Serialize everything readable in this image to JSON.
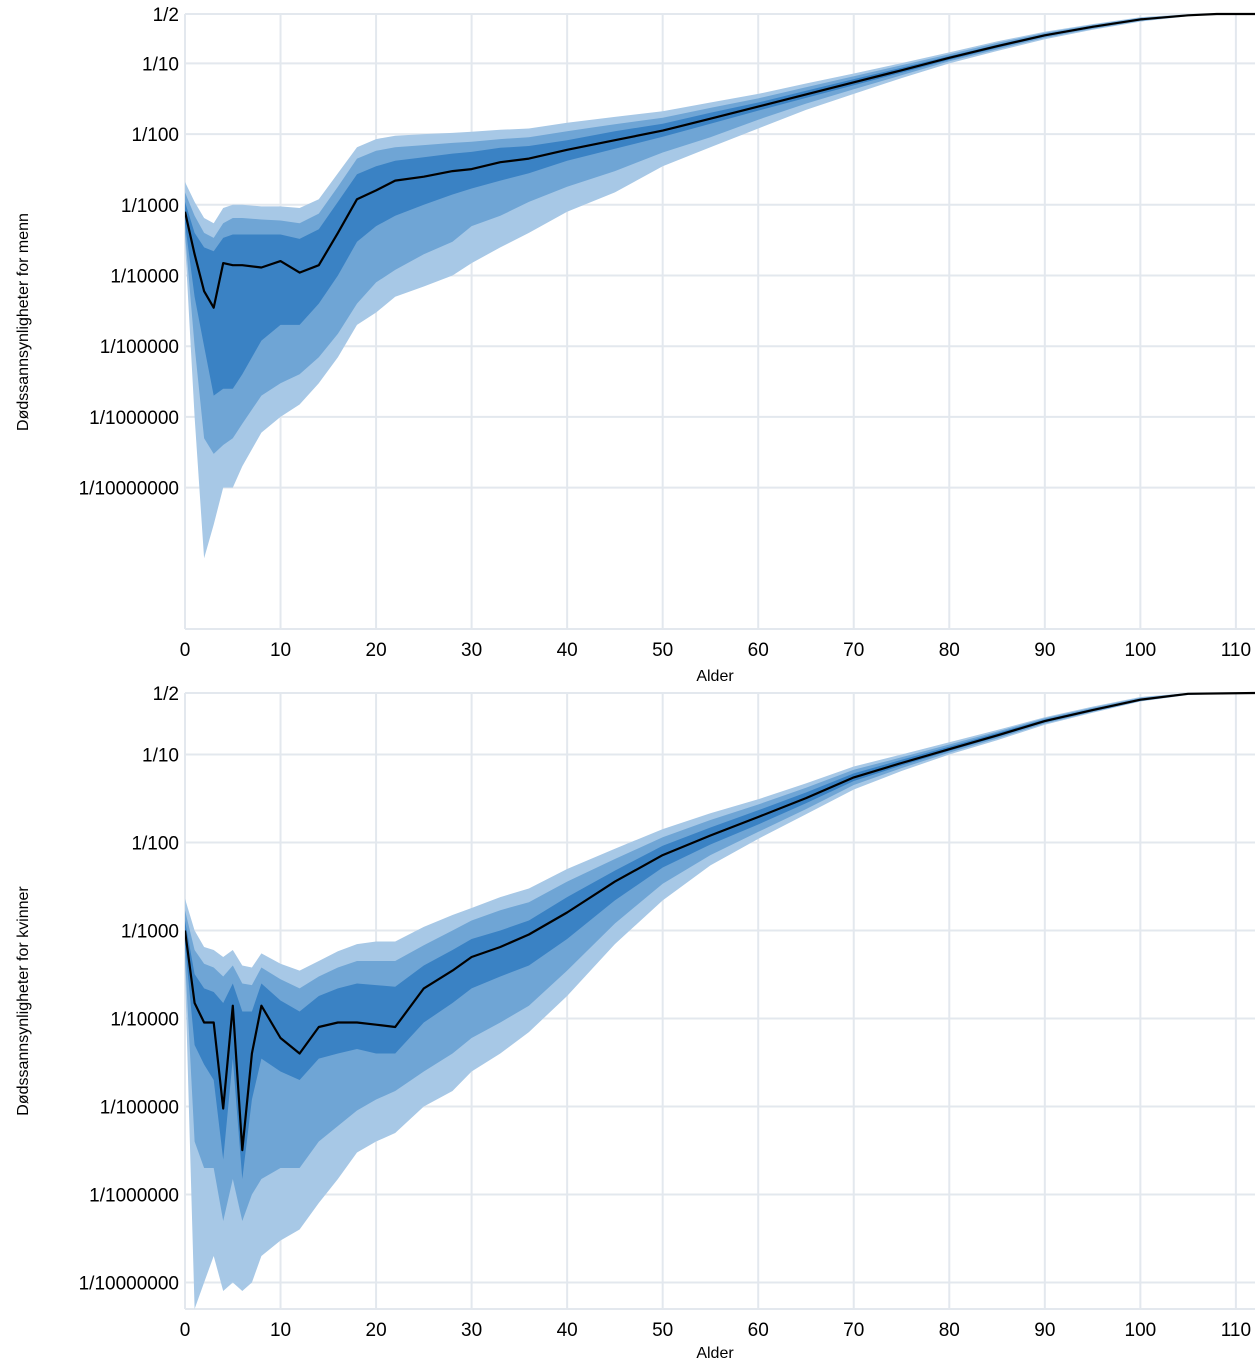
{
  "chart_data": [
    {
      "type": "area",
      "xlabel": "Alder",
      "ylabel": "Dødssannsynligheter for menn",
      "y_scale": "log",
      "xlim": [
        0,
        112
      ],
      "ylim": [
        1e-09,
        0.5
      ],
      "grid": true,
      "x_ticks": [
        0,
        10,
        20,
        30,
        40,
        50,
        60,
        70,
        80,
        90,
        100,
        110
      ],
      "y_ticks": [
        {
          "value": 0.5,
          "label": "1/2"
        },
        {
          "value": 0.1,
          "label": "1/10"
        },
        {
          "value": 0.01,
          "label": "1/100"
        },
        {
          "value": 0.001,
          "label": "1/1000"
        },
        {
          "value": 0.0001,
          "label": "1/10000"
        },
        {
          "value": 1e-05,
          "label": "1/100000"
        },
        {
          "value": 1e-06,
          "label": "1/1000000"
        },
        {
          "value": 1e-07,
          "label": "1/10000000"
        }
      ],
      "colors": {
        "outer": "#a7c8e6",
        "middle": "#6fa5d5",
        "inner": "#3a82c4",
        "line": "#000000",
        "grid": "#e3e8ee"
      },
      "x": [
        0,
        1,
        2,
        3,
        4,
        5,
        6,
        8,
        10,
        12,
        14,
        16,
        18,
        20,
        22,
        25,
        28,
        30,
        33,
        36,
        40,
        45,
        50,
        55,
        60,
        65,
        70,
        75,
        80,
        85,
        90,
        95,
        100,
        105,
        108,
        112
      ],
      "median": [
        0.0008,
        0.0002,
        6e-05,
        3.5e-05,
        0.00015,
        0.00014,
        0.00014,
        0.00013,
        0.00016,
        0.00011,
        0.00014,
        0.0004,
        0.0012,
        0.0016,
        0.0022,
        0.0025,
        0.003,
        0.0032,
        0.004,
        0.0045,
        0.006,
        0.0082,
        0.0112,
        0.0165,
        0.0245,
        0.0365,
        0.054,
        0.08,
        0.12,
        0.175,
        0.25,
        0.33,
        0.42,
        0.48,
        0.5,
        0.5
      ],
      "band_inner_lo": [
        0.00055,
        5e-05,
        1e-05,
        2e-06,
        2.5e-06,
        2.5e-06,
        4e-06,
        1.2e-05,
        2e-05,
        2e-05,
        4e-05,
        0.0001,
        0.0003,
        0.0005,
        0.0007,
        0.001,
        0.0014,
        0.0017,
        0.0022,
        0.0028,
        0.0042,
        0.0062,
        0.0092,
        0.014,
        0.0215,
        0.0325,
        0.049,
        0.074,
        0.113,
        0.166,
        0.24,
        0.32,
        0.41,
        0.475,
        0.5,
        0.5
      ],
      "band_inner_hi": [
        0.0011,
        0.0004,
        0.00025,
        0.00022,
        0.00034,
        0.00038,
        0.00038,
        0.00038,
        0.00038,
        0.00033,
        0.00045,
        0.0011,
        0.0027,
        0.0035,
        0.0042,
        0.0047,
        0.0053,
        0.0056,
        0.0064,
        0.0068,
        0.0082,
        0.011,
        0.014,
        0.02,
        0.028,
        0.041,
        0.06,
        0.087,
        0.127,
        0.184,
        0.26,
        0.34,
        0.43,
        0.485,
        0.5,
        0.5
      ],
      "band_middle_lo": [
        0.0004,
        1e-05,
        5e-07,
        3e-07,
        4e-07,
        5e-07,
        8e-07,
        2e-06,
        3e-06,
        4e-06,
        7e-06,
        1.5e-05,
        4e-05,
        8e-05,
        0.00012,
        0.0002,
        0.0003,
        0.0005,
        0.0007,
        0.0011,
        0.0018,
        0.003,
        0.0055,
        0.009,
        0.016,
        0.027,
        0.043,
        0.068,
        0.107,
        0.158,
        0.23,
        0.31,
        0.4,
        0.47,
        0.5,
        0.5
      ],
      "band_middle_hi": [
        0.0015,
        0.0007,
        0.0004,
        0.00034,
        0.00055,
        0.00065,
        0.00065,
        0.00062,
        0.0006,
        0.00055,
        0.00075,
        0.0018,
        0.0045,
        0.0058,
        0.0065,
        0.007,
        0.0075,
        0.0078,
        0.0085,
        0.009,
        0.011,
        0.0138,
        0.017,
        0.0235,
        0.032,
        0.046,
        0.066,
        0.094,
        0.135,
        0.195,
        0.27,
        0.35,
        0.44,
        0.49,
        0.5,
        0.5
      ],
      "band_outer_lo": [
        0.0003,
        1e-06,
        1e-08,
        3e-08,
        1e-07,
        1e-07,
        2e-07,
        6e-07,
        1e-06,
        1.5e-06,
        3e-06,
        7e-06,
        2e-05,
        3e-05,
        5e-05,
        7e-05,
        0.0001,
        0.00015,
        0.00025,
        0.0004,
        0.0008,
        0.0015,
        0.0035,
        0.0065,
        0.012,
        0.022,
        0.037,
        0.062,
        0.1,
        0.15,
        0.22,
        0.3,
        0.39,
        0.465,
        0.5,
        0.5
      ],
      "band_outer_hi": [
        0.0021,
        0.0011,
        0.00065,
        0.00055,
        0.0009,
        0.001,
        0.001,
        0.00095,
        0.00095,
        0.0009,
        0.0012,
        0.0028,
        0.0065,
        0.0085,
        0.0095,
        0.01,
        0.0104,
        0.0108,
        0.0115,
        0.012,
        0.0145,
        0.0175,
        0.021,
        0.028,
        0.037,
        0.052,
        0.072,
        0.101,
        0.143,
        0.205,
        0.28,
        0.36,
        0.45,
        0.495,
        0.5,
        0.5
      ]
    },
    {
      "type": "area",
      "xlabel": "Alder",
      "ylabel": "Dødssannsynligheter for kvinner",
      "y_scale": "log",
      "xlim": [
        0,
        112
      ],
      "ylim": [
        5e-08,
        0.5
      ],
      "grid": true,
      "x_ticks": [
        0,
        10,
        20,
        30,
        40,
        50,
        60,
        70,
        80,
        90,
        100,
        110
      ],
      "y_ticks": [
        {
          "value": 0.5,
          "label": "1/2"
        },
        {
          "value": 0.1,
          "label": "1/10"
        },
        {
          "value": 0.01,
          "label": "1/100"
        },
        {
          "value": 0.001,
          "label": "1/1000"
        },
        {
          "value": 0.0001,
          "label": "1/10000"
        },
        {
          "value": 1e-05,
          "label": "1/100000"
        },
        {
          "value": 1e-06,
          "label": "1/1000000"
        },
        {
          "value": 1e-07,
          "label": "1/10000000"
        }
      ],
      "colors": {
        "outer": "#a7c8e6",
        "middle": "#6fa5d5",
        "inner": "#3a82c4",
        "line": "#000000",
        "grid": "#e3e8ee"
      },
      "x": [
        0,
        1,
        2,
        3,
        4,
        5,
        6,
        7,
        8,
        10,
        12,
        14,
        16,
        18,
        20,
        22,
        25,
        28,
        30,
        33,
        36,
        40,
        45,
        50,
        55,
        60,
        65,
        70,
        75,
        80,
        85,
        90,
        95,
        100,
        105,
        112
      ],
      "median": [
        0.001,
        0.00015,
        9e-05,
        9e-05,
        9.5e-06,
        0.00014,
        3.2e-06,
        4e-05,
        0.00014,
        6e-05,
        4e-05,
        8e-05,
        9e-05,
        9e-05,
        8.5e-05,
        8e-05,
        0.00022,
        0.00035,
        0.0005,
        0.00065,
        0.0009,
        0.0016,
        0.0036,
        0.0072,
        0.012,
        0.0195,
        0.032,
        0.055,
        0.08,
        0.115,
        0.165,
        0.24,
        0.32,
        0.42,
        0.49,
        0.5
      ],
      "band_inner_lo": [
        0.0007,
        5e-05,
        3e-05,
        2e-05,
        2.5e-06,
        3.5e-05,
        1.5e-06,
        1.2e-05,
        3.5e-05,
        2.5e-05,
        2e-05,
        3.5e-05,
        4e-05,
        4.5e-05,
        4e-05,
        4e-05,
        9e-05,
        0.00015,
        0.00022,
        0.0003,
        0.0004,
        0.0008,
        0.0022,
        0.0052,
        0.0095,
        0.016,
        0.028,
        0.05,
        0.075,
        0.11,
        0.158,
        0.232,
        0.31,
        0.41,
        0.485,
        0.5
      ],
      "band_inner_hi": [
        0.0013,
        0.00032,
        0.00022,
        0.0002,
        0.00015,
        0.00025,
        0.00012,
        0.00012,
        0.00025,
        0.00016,
        0.00012,
        0.00018,
        0.00022,
        0.00025,
        0.00024,
        0.00023,
        0.0004,
        0.0006,
        0.0008,
        0.001,
        0.0013,
        0.0024,
        0.0048,
        0.0092,
        0.0148,
        0.0232,
        0.037,
        0.061,
        0.087,
        0.123,
        0.175,
        0.25,
        0.33,
        0.43,
        0.495,
        0.5
      ],
      "band_middle_lo": [
        0.0005,
        4e-06,
        2e-06,
        2e-06,
        5e-07,
        1.5e-06,
        5e-07,
        1e-06,
        1.5e-06,
        2e-06,
        2e-06,
        4e-06,
        6e-06,
        9e-06,
        1.2e-05,
        1.5e-05,
        2.5e-05,
        4e-05,
        6e-05,
        9e-05,
        0.00014,
        0.00035,
        0.0012,
        0.0034,
        0.0072,
        0.0132,
        0.024,
        0.045,
        0.07,
        0.105,
        0.152,
        0.225,
        0.305,
        0.405,
        0.48,
        0.5
      ],
      "band_middle_hi": [
        0.0017,
        0.0006,
        0.00042,
        0.00038,
        0.0003,
        0.0004,
        0.00025,
        0.00024,
        0.00038,
        0.00028,
        0.00022,
        0.0003,
        0.00038,
        0.00045,
        0.00045,
        0.00045,
        0.00068,
        0.001,
        0.0013,
        0.0017,
        0.0021,
        0.0036,
        0.0065,
        0.0115,
        0.018,
        0.027,
        0.042,
        0.067,
        0.093,
        0.13,
        0.182,
        0.258,
        0.34,
        0.44,
        0.5,
        0.5
      ],
      "band_outer_lo": [
        0.00035,
        5e-08,
        1e-07,
        2e-07,
        8e-08,
        1e-07,
        8e-08,
        1e-07,
        2e-07,
        3e-07,
        4e-07,
        8e-07,
        1.5e-06,
        3e-06,
        4e-06,
        5e-06,
        1e-05,
        1.5e-05,
        2.5e-05,
        4e-05,
        7e-05,
        0.00018,
        0.0007,
        0.0022,
        0.0055,
        0.011,
        0.021,
        0.04,
        0.065,
        0.1,
        0.145,
        0.218,
        0.298,
        0.4,
        0.475,
        0.5
      ],
      "band_outer_hi": [
        0.0023,
        0.001,
        0.00065,
        0.0006,
        0.0005,
        0.0006,
        0.0004,
        0.00038,
        0.00055,
        0.00042,
        0.00035,
        0.00045,
        0.00058,
        0.0007,
        0.00075,
        0.00075,
        0.0011,
        0.0015,
        0.0018,
        0.0024,
        0.003,
        0.005,
        0.0085,
        0.0142,
        0.0215,
        0.031,
        0.047,
        0.073,
        0.1,
        0.138,
        0.19,
        0.265,
        0.35,
        0.45,
        0.5,
        0.5
      ]
    }
  ]
}
